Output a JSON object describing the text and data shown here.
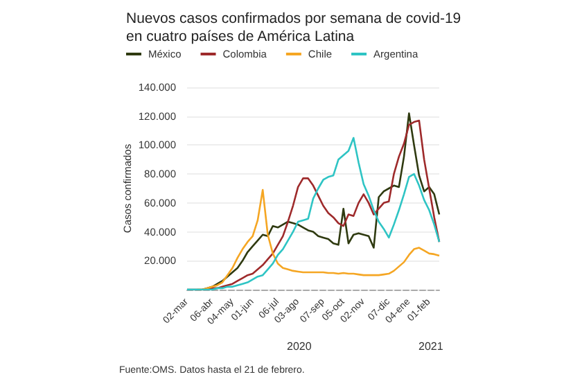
{
  "chart_data": {
    "type": "line",
    "title": "Nuevos casos confirmados por semana de covid-19\nen cuatro países de América Latina",
    "ylabel": "Casos confirmados",
    "annotations": [
      "2020",
      "2021",
      "Fuente:OMS. Datos hasta el 21 de febrero."
    ],
    "x": [
      "2020-03-02",
      "2020-03-09",
      "2020-03-16",
      "2020-03-23",
      "2020-03-30",
      "2020-04-06",
      "2020-04-13",
      "2020-04-20",
      "2020-04-27",
      "2020-05-04",
      "2020-05-11",
      "2020-05-18",
      "2020-05-25",
      "2020-06-01",
      "2020-06-08",
      "2020-06-15",
      "2020-06-22",
      "2020-06-29",
      "2020-07-06",
      "2020-07-13",
      "2020-07-20",
      "2020-07-27",
      "2020-08-03",
      "2020-08-10",
      "2020-08-17",
      "2020-08-24",
      "2020-08-31",
      "2020-09-07",
      "2020-09-14",
      "2020-09-21",
      "2020-09-28",
      "2020-10-05",
      "2020-10-12",
      "2020-10-19",
      "2020-10-26",
      "2020-11-02",
      "2020-11-09",
      "2020-11-16",
      "2020-11-23",
      "2020-11-30",
      "2020-12-07",
      "2020-12-14",
      "2020-12-21",
      "2020-12-28",
      "2021-01-04",
      "2021-01-11",
      "2021-01-18",
      "2021-01-25",
      "2021-02-01",
      "2021-02-08",
      "2021-02-15"
    ],
    "series": [
      {
        "name": "México",
        "color": "#2f3a10",
        "values": [
          0,
          0,
          0,
          0,
          1000,
          2000,
          4000,
          6000,
          9000,
          12000,
          15000,
          20000,
          26000,
          30000,
          34000,
          38000,
          37000,
          44000,
          43000,
          45000,
          47000,
          46000,
          45000,
          43000,
          41000,
          40000,
          37000,
          36000,
          35000,
          32000,
          31000,
          56000,
          32000,
          38000,
          39000,
          38000,
          37000,
          29000,
          64000,
          68000,
          70000,
          72000,
          71000,
          92000,
          122000,
          100000,
          79000,
          68000,
          71000,
          66000,
          52000
        ]
      },
      {
        "name": "Colombia",
        "color": "#9e2a2b",
        "values": [
          null,
          null,
          null,
          null,
          0,
          1000,
          1000,
          2000,
          3000,
          4000,
          6000,
          8000,
          10000,
          11000,
          14000,
          17000,
          21000,
          25000,
          31000,
          37000,
          47000,
          58000,
          71000,
          77000,
          77000,
          72000,
          65000,
          58000,
          53000,
          50000,
          46000,
          44000,
          52000,
          51000,
          60000,
          66000,
          60000,
          52000,
          56000,
          60000,
          61000,
          80000,
          92000,
          101000,
          114000,
          116000,
          117000,
          90000,
          70000,
          50000,
          33000
        ]
      },
      {
        "name": "Chile",
        "color": "#f5a623",
        "values": [
          null,
          null,
          0,
          0,
          1000,
          2000,
          3000,
          5000,
          10000,
          15000,
          22000,
          28000,
          33000,
          37000,
          48000,
          69000,
          38000,
          25000,
          18000,
          15000,
          14000,
          13000,
          12500,
          12000,
          12000,
          12000,
          12000,
          12000,
          11500,
          11500,
          11000,
          11500,
          11000,
          11000,
          10500,
          10000,
          10000,
          10000,
          10000,
          10500,
          11000,
          13000,
          16000,
          19000,
          24000,
          28000,
          29000,
          27000,
          25000,
          24500,
          23500
        ]
      },
      {
        "name": "Argentina",
        "color": "#2ec4c4",
        "values": [
          0,
          0,
          0,
          0,
          0,
          0,
          1000,
          1000,
          2000,
          2000,
          3000,
          4000,
          5000,
          7000,
          9000,
          10000,
          14000,
          18000,
          24000,
          28000,
          34000,
          40000,
          47000,
          48000,
          49000,
          63000,
          70000,
          76000,
          78000,
          79000,
          90000,
          93000,
          96000,
          105000,
          88000,
          73000,
          65000,
          55000,
          47000,
          42000,
          36000,
          45000,
          55000,
          66000,
          78000,
          80000,
          72000,
          62000,
          55000,
          45000,
          33000
        ]
      }
    ],
    "xlim": [
      "2020-03-02",
      "2021-02-15"
    ],
    "xticks": [
      {
        "value": "2020-03-02",
        "label": "02-mar"
      },
      {
        "value": "2020-04-06",
        "label": "06-abr"
      },
      {
        "value": "2020-05-04",
        "label": "04-may"
      },
      {
        "value": "2020-06-01",
        "label": "01-jun"
      },
      {
        "value": "2020-07-06",
        "label": "06-jul"
      },
      {
        "value": "2020-08-03",
        "label": "03-ago"
      },
      {
        "value": "2020-09-07",
        "label": "07-sep"
      },
      {
        "value": "2020-10-05",
        "label": "05-oct"
      },
      {
        "value": "2020-11-02",
        "label": "02-nov"
      },
      {
        "value": "2020-12-07",
        "label": "07-dic"
      },
      {
        "value": "2021-01-04",
        "label": "04-ene"
      },
      {
        "value": "2021-02-01",
        "label": "01-feb"
      }
    ],
    "ylim": [
      0,
      140000
    ],
    "yticks": [
      {
        "value": 0,
        "label": null
      },
      {
        "value": 20000,
        "label": "20.000"
      },
      {
        "value": 40000,
        "label": "40.000"
      },
      {
        "value": 60000,
        "label": "60.000"
      },
      {
        "value": 80000,
        "label": "80.000"
      },
      {
        "value": 100000,
        "label": "100.000"
      },
      {
        "value": 120000,
        "label": "120.000"
      },
      {
        "value": 140000,
        "label": "140.000"
      }
    ],
    "grid": "y",
    "legend": "top",
    "marker": "none",
    "line_style": "solid"
  }
}
